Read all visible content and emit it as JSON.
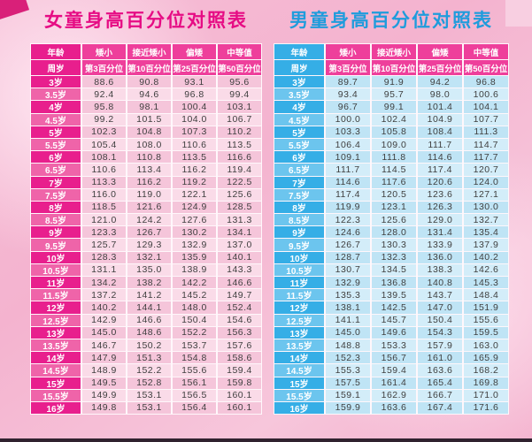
{
  "poster": {
    "bottom_border_color": "#30222f",
    "background_color": "#f4b6d1"
  },
  "tables": [
    {
      "id": "girls-height-percentile-table",
      "title": "女童身高百分位对照表",
      "title_color": "#e60c84",
      "accent_color": "#e81f8d",
      "header_row1": [
        "年龄",
        "矮小",
        "接近矮小",
        "偏矮",
        "中等值"
      ],
      "header_row2": [
        "周岁",
        "第3百分位",
        "第10百分位",
        "第25百分位",
        "第50百分位"
      ],
      "rows": [
        {
          "age": "3岁",
          "values": [
            "88.6",
            "90.8",
            "93.1",
            "95.6"
          ]
        },
        {
          "age": "3.5岁",
          "values": [
            "92.4",
            "94.6",
            "96.8",
            "99.4"
          ]
        },
        {
          "age": "4岁",
          "values": [
            "95.8",
            "98.1",
            "100.4",
            "103.1"
          ]
        },
        {
          "age": "4.5岁",
          "values": [
            "99.2",
            "101.5",
            "104.0",
            "106.7"
          ]
        },
        {
          "age": "5岁",
          "values": [
            "102.3",
            "104.8",
            "107.3",
            "110.2"
          ]
        },
        {
          "age": "5.5岁",
          "values": [
            "105.4",
            "108.0",
            "110.6",
            "113.5"
          ]
        },
        {
          "age": "6岁",
          "values": [
            "108.1",
            "110.8",
            "113.5",
            "116.6"
          ]
        },
        {
          "age": "6.5岁",
          "values": [
            "110.6",
            "113.4",
            "116.2",
            "119.4"
          ]
        },
        {
          "age": "7岁",
          "values": [
            "113.3",
            "116.2",
            "119.2",
            "122.5"
          ]
        },
        {
          "age": "7.5岁",
          "values": [
            "116.0",
            "119.0",
            "122.1",
            "125.6"
          ]
        },
        {
          "age": "8岁",
          "values": [
            "118.5",
            "121.6",
            "124.9",
            "128.5"
          ]
        },
        {
          "age": "8.5岁",
          "values": [
            "121.0",
            "124.2",
            "127.6",
            "131.3"
          ]
        },
        {
          "age": "9岁",
          "values": [
            "123.3",
            "126.7",
            "130.2",
            "134.1"
          ]
        },
        {
          "age": "9.5岁",
          "values": [
            "125.7",
            "129.3",
            "132.9",
            "137.0"
          ]
        },
        {
          "age": "10岁",
          "values": [
            "128.3",
            "132.1",
            "135.9",
            "140.1"
          ]
        },
        {
          "age": "10.5岁",
          "values": [
            "131.1",
            "135.0",
            "138.9",
            "143.3"
          ]
        },
        {
          "age": "11岁",
          "values": [
            "134.2",
            "138.2",
            "142.2",
            "146.6"
          ]
        },
        {
          "age": "11.5岁",
          "values": [
            "137.2",
            "141.2",
            "145.2",
            "149.7"
          ]
        },
        {
          "age": "12岁",
          "values": [
            "140.2",
            "144.1",
            "148.0",
            "152.4"
          ]
        },
        {
          "age": "12.5岁",
          "values": [
            "142.9",
            "146.6",
            "150.4",
            "154.6"
          ]
        },
        {
          "age": "13岁",
          "values": [
            "145.0",
            "148.6",
            "152.2",
            "156.3"
          ]
        },
        {
          "age": "13.5岁",
          "values": [
            "146.7",
            "150.2",
            "153.7",
            "157.6"
          ]
        },
        {
          "age": "14岁",
          "values": [
            "147.9",
            "151.3",
            "154.8",
            "158.6"
          ]
        },
        {
          "age": "14.5岁",
          "values": [
            "148.9",
            "152.2",
            "155.6",
            "159.4"
          ]
        },
        {
          "age": "15岁",
          "values": [
            "149.5",
            "152.8",
            "156.1",
            "159.8"
          ]
        },
        {
          "age": "15.5岁",
          "values": [
            "149.9",
            "153.1",
            "156.5",
            "160.1"
          ]
        },
        {
          "age": "16岁",
          "values": [
            "149.8",
            "153.1",
            "156.4",
            "160.1"
          ]
        }
      ]
    },
    {
      "id": "boys-height-percentile-table",
      "title": "男童身高百分位对照表",
      "title_color": "#1f9cdc",
      "accent_color": "#35aee6",
      "header_row1": [
        "年龄",
        "矮小",
        "接近矮小",
        "偏矮",
        "中等值"
      ],
      "header_row2": [
        "周岁",
        "第3百分位",
        "第10百分位",
        "第25百分位",
        "第50百分位"
      ],
      "rows": [
        {
          "age": "3岁",
          "values": [
            "89.7",
            "91.9",
            "94.2",
            "96.8"
          ]
        },
        {
          "age": "3.5岁",
          "values": [
            "93.4",
            "95.7",
            "98.0",
            "100.6"
          ]
        },
        {
          "age": "4岁",
          "values": [
            "96.7",
            "99.1",
            "101.4",
            "104.1"
          ]
        },
        {
          "age": "4.5岁",
          "values": [
            "100.0",
            "102.4",
            "104.9",
            "107.7"
          ]
        },
        {
          "age": "5岁",
          "values": [
            "103.3",
            "105.8",
            "108.4",
            "111.3"
          ]
        },
        {
          "age": "5.5岁",
          "values": [
            "106.4",
            "109.0",
            "111.7",
            "114.7"
          ]
        },
        {
          "age": "6岁",
          "values": [
            "109.1",
            "111.8",
            "114.6",
            "117.7"
          ]
        },
        {
          "age": "6.5岁",
          "values": [
            "111.7",
            "114.5",
            "117.4",
            "120.7"
          ]
        },
        {
          "age": "7岁",
          "values": [
            "114.6",
            "117.6",
            "120.6",
            "124.0"
          ]
        },
        {
          "age": "7.5岁",
          "values": [
            "117.4",
            "120.5",
            "123.6",
            "127.1"
          ]
        },
        {
          "age": "8岁",
          "values": [
            "119.9",
            "123.1",
            "126.3",
            "130.0"
          ]
        },
        {
          "age": "8.5岁",
          "values": [
            "122.3",
            "125.6",
            "129.0",
            "132.7"
          ]
        },
        {
          "age": "9岁",
          "values": [
            "124.6",
            "128.0",
            "131.4",
            "135.4"
          ]
        },
        {
          "age": "9.5岁",
          "values": [
            "126.7",
            "130.3",
            "133.9",
            "137.9"
          ]
        },
        {
          "age": "10岁",
          "values": [
            "128.7",
            "132.3",
            "136.0",
            "140.2"
          ]
        },
        {
          "age": "10.5岁",
          "values": [
            "130.7",
            "134.5",
            "138.3",
            "142.6"
          ]
        },
        {
          "age": "11岁",
          "values": [
            "132.9",
            "136.8",
            "140.8",
            "145.3"
          ]
        },
        {
          "age": "11.5岁",
          "values": [
            "135.3",
            "139.5",
            "143.7",
            "148.4"
          ]
        },
        {
          "age": "12岁",
          "values": [
            "138.1",
            "142.5",
            "147.0",
            "151.9"
          ]
        },
        {
          "age": "12.5岁",
          "values": [
            "141.1",
            "145.7",
            "150.4",
            "155.6"
          ]
        },
        {
          "age": "13岁",
          "values": [
            "145.0",
            "149.6",
            "154.3",
            "159.5"
          ]
        },
        {
          "age": "13.5岁",
          "values": [
            "148.8",
            "153.3",
            "157.9",
            "163.0"
          ]
        },
        {
          "age": "14岁",
          "values": [
            "152.3",
            "156.7",
            "161.0",
            "165.9"
          ]
        },
        {
          "age": "14.5岁",
          "values": [
            "155.3",
            "159.4",
            "163.6",
            "168.2"
          ]
        },
        {
          "age": "15岁",
          "values": [
            "157.5",
            "161.4",
            "165.4",
            "169.8"
          ]
        },
        {
          "age": "15.5岁",
          "values": [
            "159.1",
            "162.9",
            "166.7",
            "171.0"
          ]
        },
        {
          "age": "16岁",
          "values": [
            "159.9",
            "163.6",
            "167.4",
            "171.6"
          ]
        }
      ]
    }
  ]
}
